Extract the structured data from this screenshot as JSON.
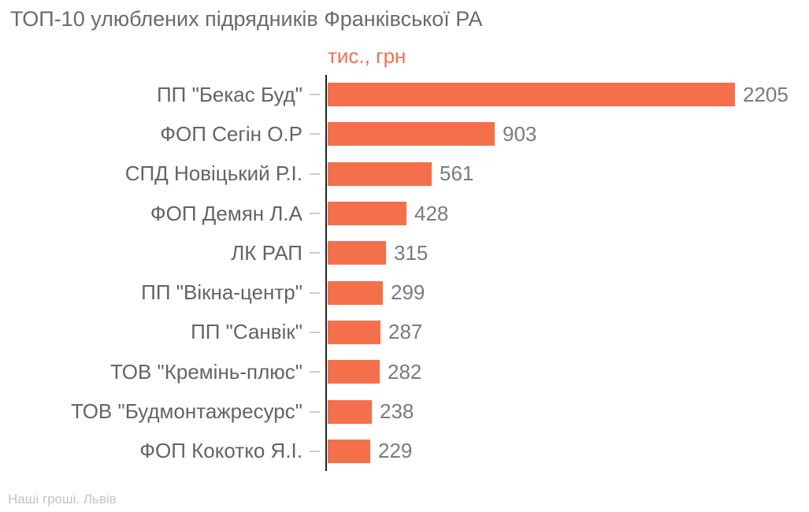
{
  "chart_data": {
    "type": "bar",
    "orientation": "horizontal",
    "title": "ТОП-10 улюблених підрядників Франківської РА",
    "value_axis_title": "тис., грн",
    "categories": [
      "ПП \"Бекас Буд\"",
      "ФОП Сегін О.Р",
      "СПД Новіцький Р.І.",
      "ФОП Демян Л.А",
      "ЛК РАП",
      "ПП \"Вікна-центр\"",
      "ПП \"Санвік\"",
      "ТОВ \"Кремінь-плюс\"",
      "ТОВ \"Будмонтажресурс\"",
      "ФОП Кокотко Я.І."
    ],
    "values": [
      2205,
      903,
      561,
      428,
      315,
      299,
      287,
      282,
      238,
      229
    ],
    "value_labels_shown": true,
    "grid": false,
    "legend_position": "none",
    "bar_color": "#F4704A"
  },
  "footer": {
    "source": "Наші гроші. Львів"
  },
  "colors": {
    "accent": "#F4704A",
    "title_text": "#6b6b6b",
    "category_text": "#646464",
    "value_text": "#7b7b7b",
    "axis_line": "#222222",
    "tick_mark": "#cccccc",
    "footer_text": "#c3c3c3"
  }
}
